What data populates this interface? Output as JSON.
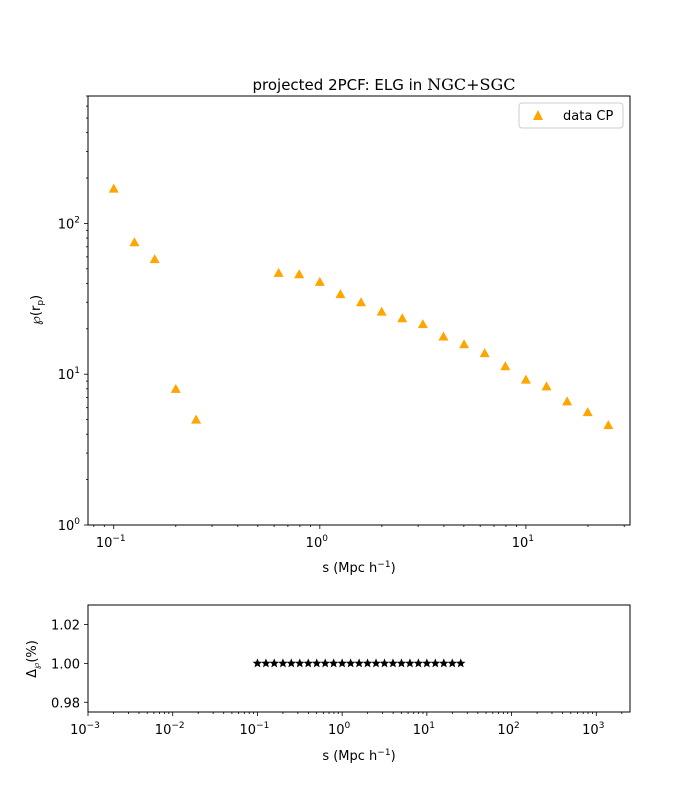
{
  "chart_data": [
    {
      "type": "scatter",
      "title": "projected 2PCF: ELG in ",
      "title_region": "NGC+SGC",
      "xlabel": "s (Mpc h",
      "xlabel_sup": "−1",
      "xlabel_close": ")",
      "ylabel": "℘(r",
      "ylabel_sub": "p",
      "ylabel_close": ")",
      "xscale": "log",
      "yscale": "log",
      "xlim": [
        0.075,
        32
      ],
      "ylim": [
        1,
        700
      ],
      "grid": false,
      "legend_placement": "top-right",
      "x_ticks": [
        {
          "value": 0.1,
          "base": "10",
          "exp": "−1"
        },
        {
          "value": 1,
          "base": "10",
          "exp": "0"
        },
        {
          "value": 10,
          "base": "10",
          "exp": "1"
        }
      ],
      "y_ticks": [
        {
          "value": 1,
          "base": "10",
          "exp": "0"
        },
        {
          "value": 10,
          "base": "10",
          "exp": "1"
        },
        {
          "value": 100,
          "base": "10",
          "exp": "2"
        }
      ],
      "series": [
        {
          "name": "data CP",
          "color": "#FFA500",
          "marker": "triangle",
          "x": [
            0.1,
            0.126,
            0.158,
            0.2,
            0.251,
            0.631,
            0.794,
            1.0,
            1.259,
            1.585,
            1.995,
            2.512,
            3.162,
            3.981,
            5.012,
            6.31,
            7.943,
            10.0,
            12.59,
            15.85,
            19.95,
            25.12
          ],
          "y": [
            170,
            75,
            58,
            8.0,
            5.0,
            47,
            46,
            41,
            34,
            30,
            26,
            23.5,
            21.5,
            17.8,
            15.8,
            13.8,
            11.3,
            9.2,
            8.3,
            6.6,
            5.6,
            4.6
          ]
        }
      ]
    },
    {
      "type": "scatter",
      "xlabel": "s (Mpc h",
      "xlabel_sup": "−1",
      "xlabel_close": ")",
      "ylabel": "Δ",
      "ylabel_sub": "℘",
      "ylabel_close": "(%)",
      "xscale": "log",
      "xlim": [
        0.001,
        2500
      ],
      "ylim": [
        0.975,
        1.03
      ],
      "grid": false,
      "x_ticks": [
        {
          "value": 0.001,
          "base": "10",
          "exp": "−3"
        },
        {
          "value": 0.01,
          "base": "10",
          "exp": "−2"
        },
        {
          "value": 0.1,
          "base": "10",
          "exp": "−1"
        },
        {
          "value": 1,
          "base": "10",
          "exp": "0"
        },
        {
          "value": 10,
          "base": "10",
          "exp": "1"
        },
        {
          "value": 100,
          "base": "10",
          "exp": "2"
        },
        {
          "value": 1000,
          "base": "10",
          "exp": "3"
        }
      ],
      "y_ticks": [
        {
          "value": 0.98,
          "label": "0.98"
        },
        {
          "value": 1.0,
          "label": "1.00"
        },
        {
          "value": 1.02,
          "label": "1.02"
        }
      ],
      "series": [
        {
          "color": "#000000",
          "marker": "star",
          "x": [
            0.1,
            0.126,
            0.158,
            0.2,
            0.251,
            0.316,
            0.398,
            0.501,
            0.631,
            0.794,
            1.0,
            1.259,
            1.585,
            1.995,
            2.512,
            3.162,
            3.981,
            5.012,
            6.31,
            7.943,
            10.0,
            12.59,
            15.85,
            19.95,
            25.12
          ],
          "y": [
            1.0,
            1.0,
            1.0,
            1.0,
            1.0,
            1.0,
            1.0,
            1.0,
            1.0,
            1.0,
            1.0,
            1.0,
            1.0,
            1.0,
            1.0,
            1.0,
            1.0,
            1.0,
            1.0,
            1.0,
            1.0,
            1.0,
            1.0,
            1.0,
            1.0
          ]
        }
      ]
    }
  ]
}
